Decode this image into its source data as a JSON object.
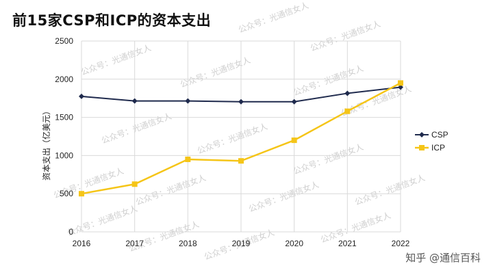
{
  "title": "前15家CSP和ICP的资本支出",
  "watermark_text": "公众号：光通信女人",
  "credit": "知乎 @通信百科",
  "chart_data": {
    "type": "line",
    "title": "前15家CSP和ICP的资本支出",
    "xlabel": "",
    "ylabel": "资本支出（亿美元）",
    "x": [
      "2016",
      "2017",
      "2018",
      "2019",
      "2020",
      "2021",
      "2022"
    ],
    "ylim": [
      0,
      2500
    ],
    "yticks": [
      0,
      500,
      1000,
      1500,
      2000,
      2500
    ],
    "grid": true,
    "legend_position": "right",
    "series": [
      {
        "name": "CSP",
        "color": "#1f2a4d",
        "marker": "diamond",
        "values": [
          1775,
          1715,
          1715,
          1705,
          1705,
          1815,
          1895
        ]
      },
      {
        "name": "ICP",
        "color": "#f5c518",
        "marker": "square",
        "values": [
          500,
          625,
          950,
          930,
          1200,
          1580,
          1950
        ]
      }
    ]
  }
}
